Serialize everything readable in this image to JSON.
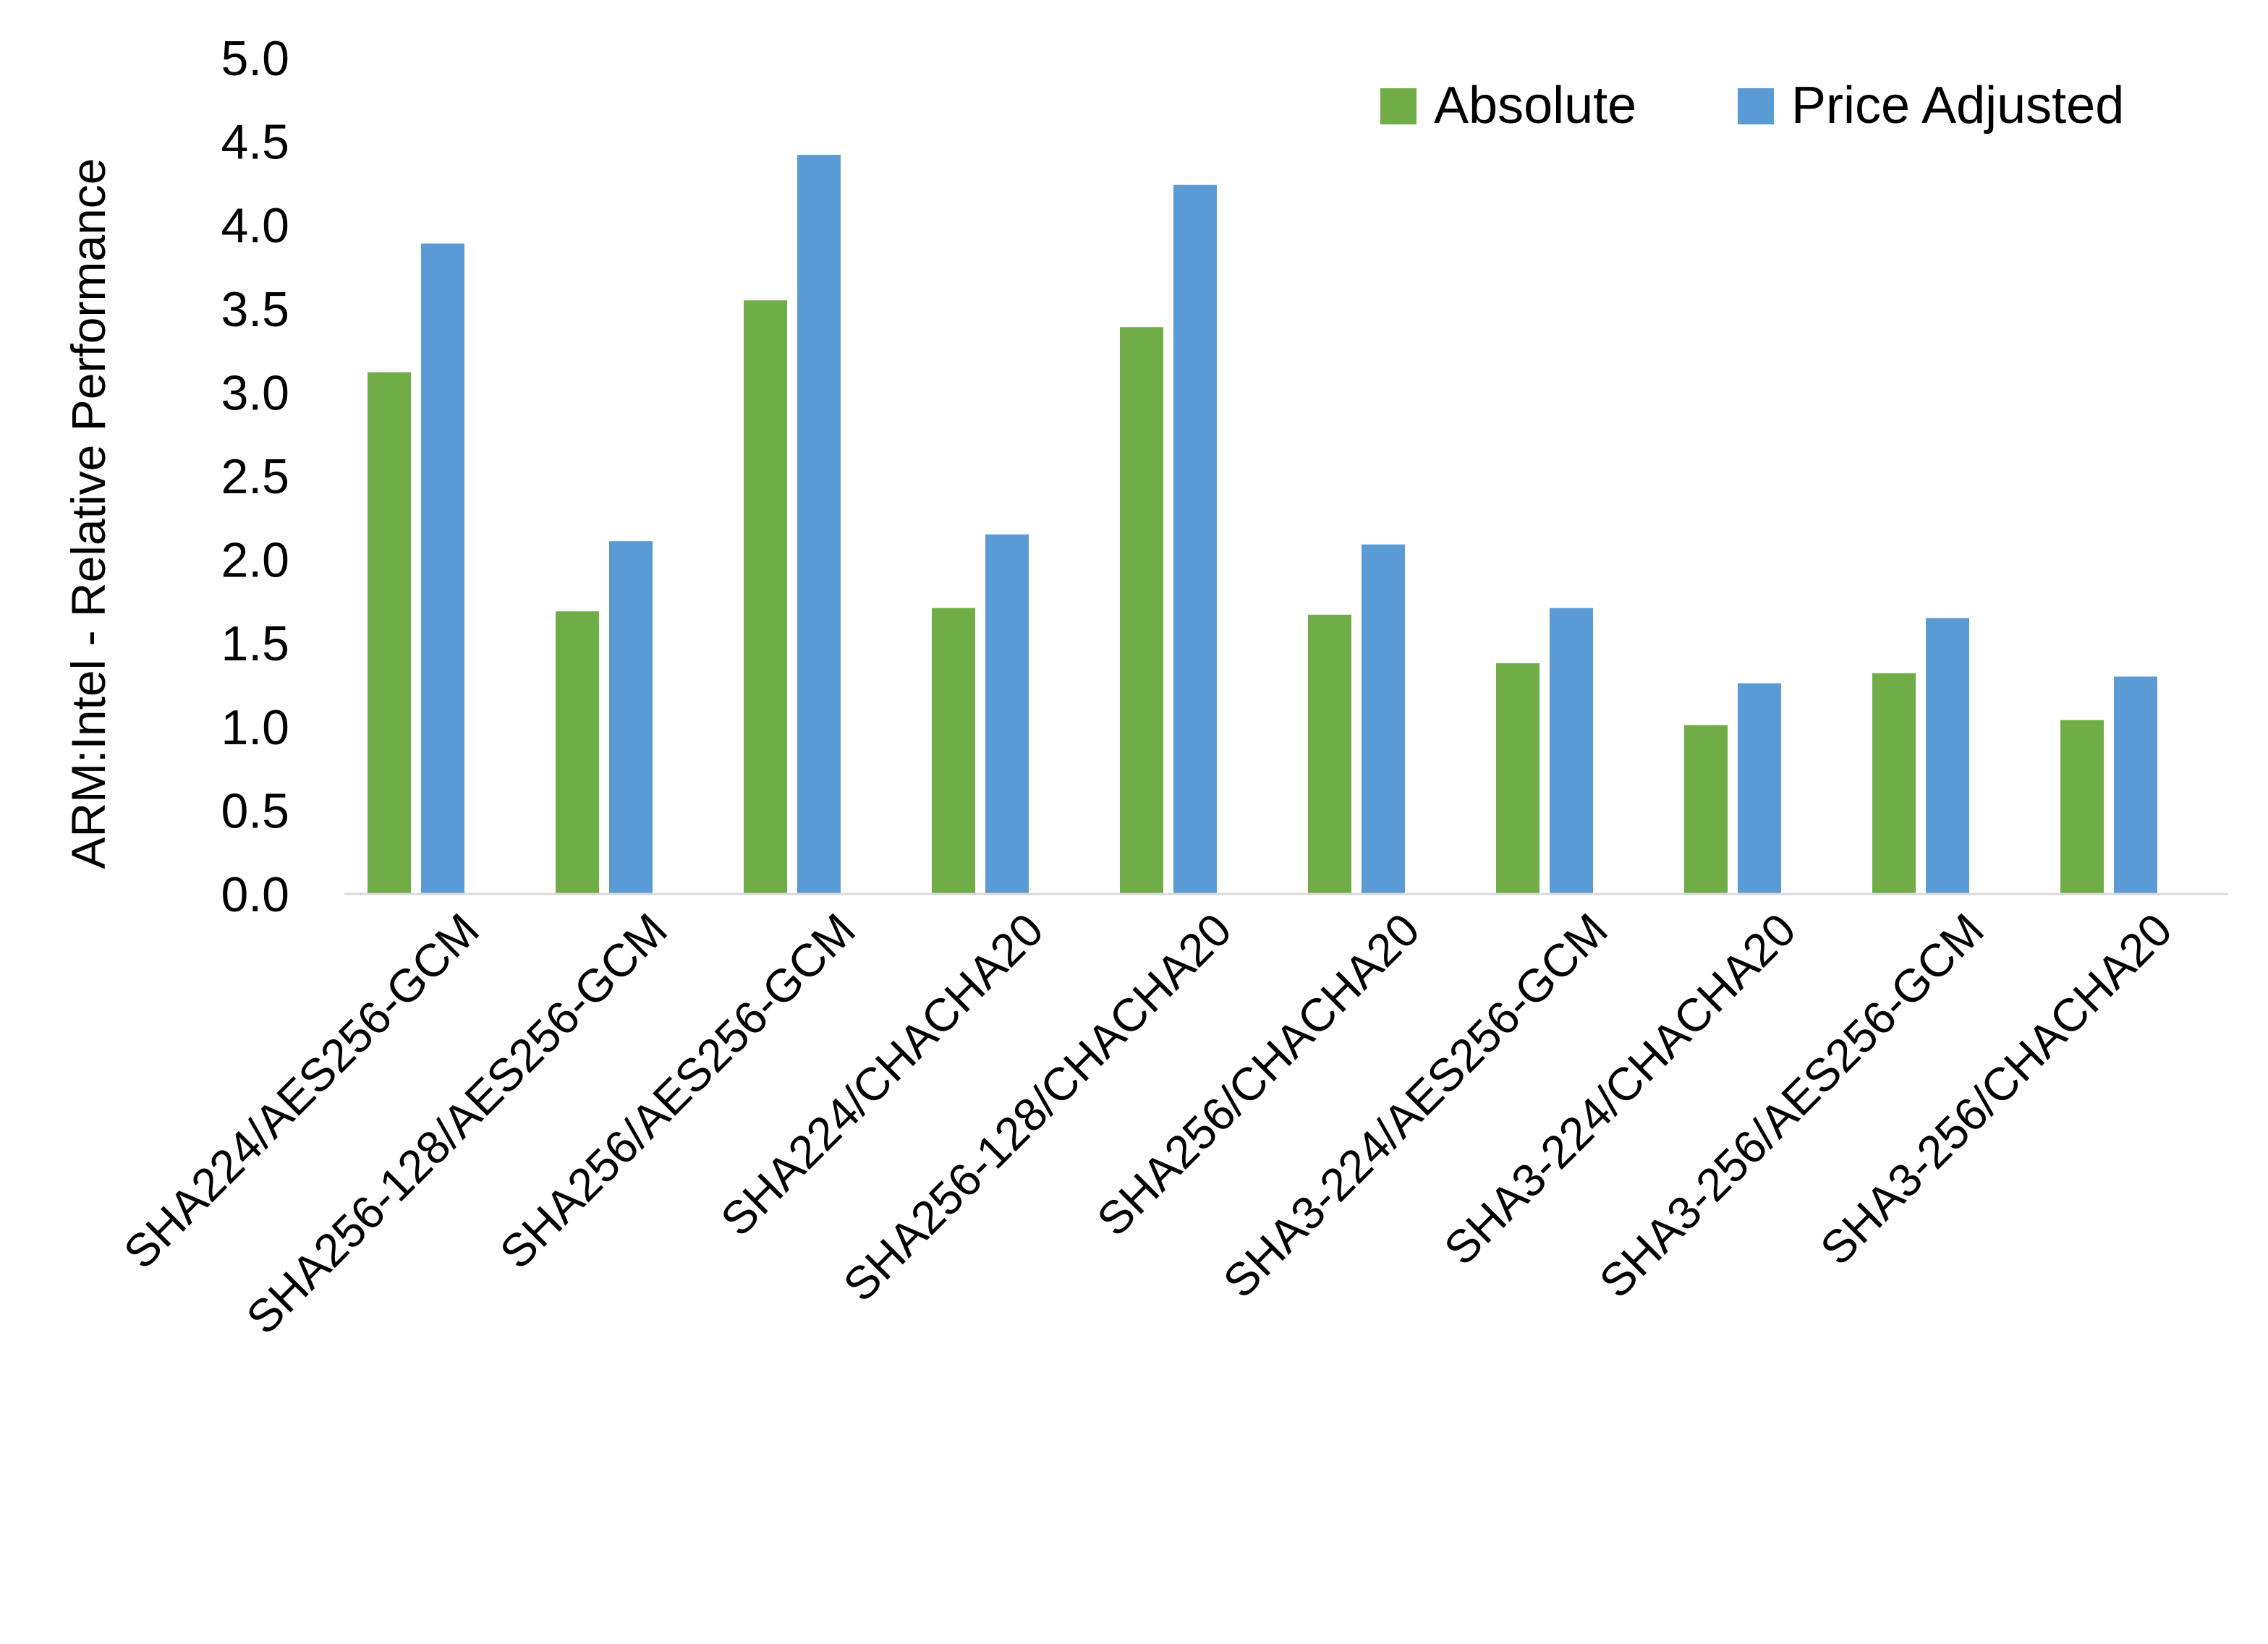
{
  "chart_data": {
    "type": "bar",
    "title": "",
    "xlabel": "",
    "ylabel": "ARM:Intel - Relative Performance",
    "ylim": [
      0,
      5
    ],
    "yticks": [
      "0.0",
      "0.5",
      "1.0",
      "1.5",
      "2.0",
      "2.5",
      "3.0",
      "3.5",
      "4.0",
      "4.5",
      "5.0"
    ],
    "grid": false,
    "legend_position": "top-right",
    "categories": [
      "SHA224/AES256-GCM",
      "SHA256-128/AES256-GCM",
      "SHA256/AES256-GCM",
      "SHA224/CHACHA20",
      "SHA256-128/CHACHA20",
      "SHA256/CHACHA20",
      "SHA3-224/AES256-GCM",
      "SHA3-224/CHACHA20",
      "SHA3-256/AES256-GCM",
      "SHA3-256/CHACHA20"
    ],
    "series": [
      {
        "name": "Absolute",
        "color": "#70ad47",
        "values": [
          3.12,
          1.69,
          3.55,
          1.71,
          3.39,
          1.67,
          1.38,
          1.01,
          1.32,
          1.04
        ]
      },
      {
        "name": "Price Adjusted",
        "color": "#5b9bd5",
        "values": [
          3.89,
          2.11,
          4.42,
          2.15,
          4.24,
          2.09,
          1.71,
          1.26,
          1.65,
          1.3
        ]
      }
    ]
  }
}
